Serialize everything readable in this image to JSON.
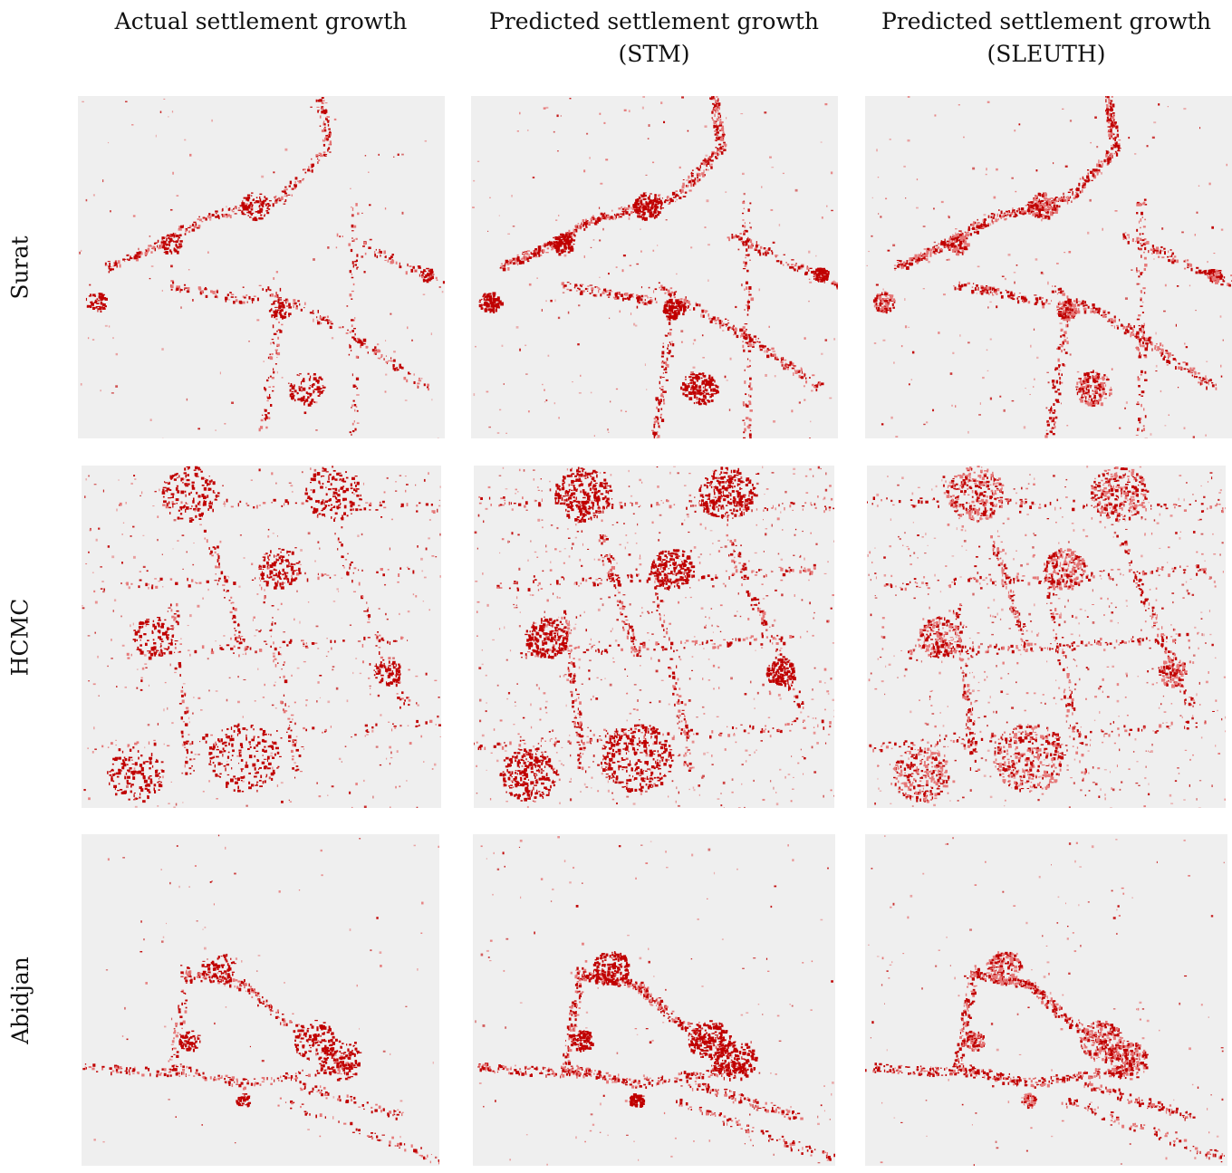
{
  "columns": [
    {
      "line1": "Actual settlement growth",
      "line2": ""
    },
    {
      "line1": "Predicted settlement growth",
      "line2": "(STM)"
    },
    {
      "line1": "Predicted settlement growth",
      "line2": "(SLEUTH)"
    }
  ],
  "rows": [
    {
      "label": "Surat"
    },
    {
      "label": "HCMC"
    },
    {
      "label": "Abidjan"
    }
  ],
  "colors": {
    "background": "#efefef",
    "growth": "#c00000",
    "growth_light": "#e57878"
  }
}
